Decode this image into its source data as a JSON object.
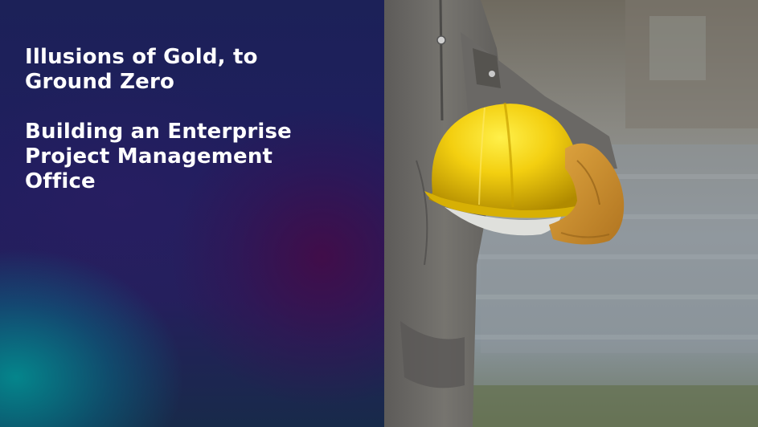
{
  "slide": {
    "title_line_1": "Illusions of Gold, to",
    "title_line_2": "Ground Zero",
    "subtitle_line_1": "Building an Enterprise",
    "subtitle_line_2": "Project Management",
    "subtitle_line_3": "Office"
  },
  "colors": {
    "title_text": "#ffffff",
    "panel_base": "#1f1e5e",
    "teal_glow": "#009696",
    "purple_glow": "#460a46",
    "helmet": "#f5d20f",
    "coverall": "#6e6c6a"
  },
  "image": {
    "icon": "worker-holding-hard-hat-photo"
  }
}
